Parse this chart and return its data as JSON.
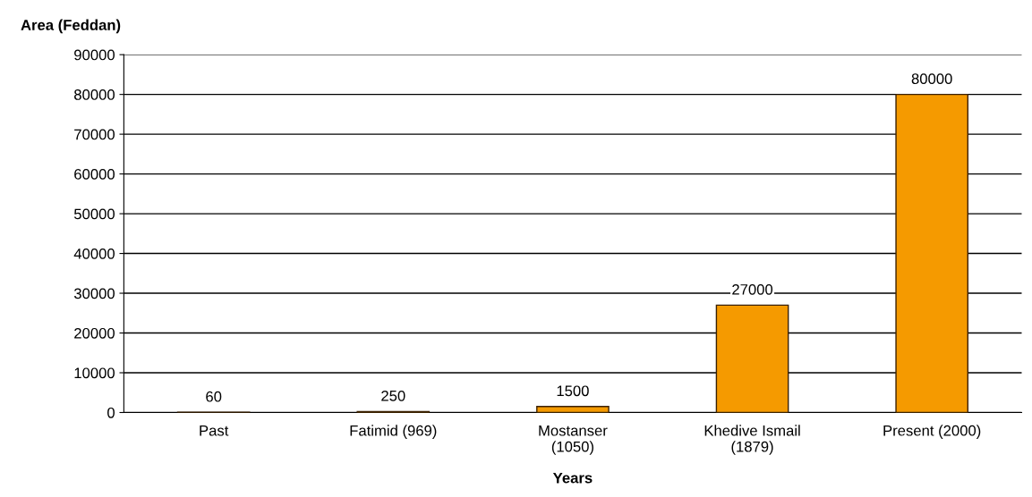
{
  "chart_data": {
    "type": "bar",
    "ylabel": "Area (Feddan)",
    "xlabel": "Years",
    "categories": [
      "Past",
      "Fatimid (969)",
      "Mostanser\n(1050)",
      "Khedive Ismail\n(1879)",
      "Present (2000)"
    ],
    "values": [
      60,
      250,
      1500,
      27000,
      80000
    ],
    "color": "#f59a00",
    "ylim": [
      0,
      90000
    ],
    "yticks": [
      0,
      10000,
      20000,
      30000,
      40000,
      50000,
      60000,
      70000,
      80000,
      90000
    ],
    "grid": "y",
    "data_labels": true
  }
}
